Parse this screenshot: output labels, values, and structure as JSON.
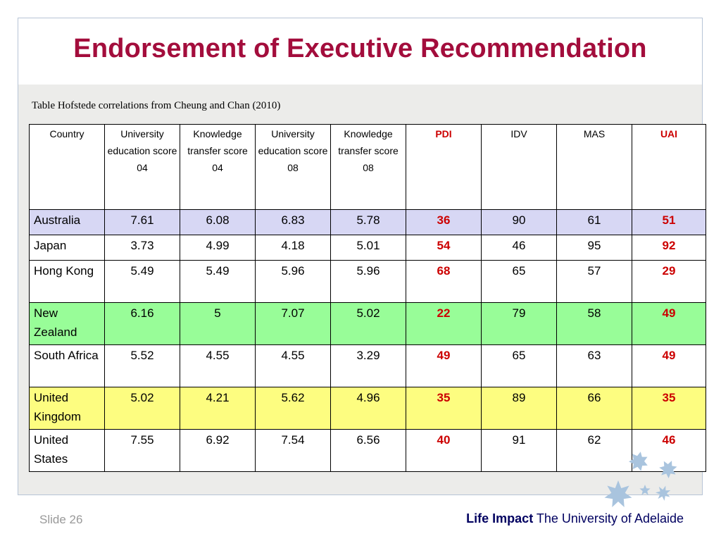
{
  "title": "Endorsement of Executive Recommendation",
  "caption": "Table Hofstede correlations from Cheung and Chan (2010)",
  "table": {
    "headers": [
      {
        "label": "Country",
        "highlight": false
      },
      {
        "label": "University education score 04",
        "highlight": false
      },
      {
        "label": "Knowledge transfer score 04",
        "highlight": false
      },
      {
        "label": "University education score 08",
        "highlight": false
      },
      {
        "label": "Knowledge transfer score 08",
        "highlight": false
      },
      {
        "label": "PDI",
        "highlight": true
      },
      {
        "label": "IDV",
        "highlight": false
      },
      {
        "label": "MAS",
        "highlight": false
      },
      {
        "label": "UAI",
        "highlight": true
      }
    ],
    "rows": [
      {
        "country": "Australia",
        "values": [
          "7.61",
          "6.08",
          "6.83",
          "5.78",
          "36",
          "90",
          "61",
          "51"
        ],
        "row_color": "#d7d7f4"
      },
      {
        "country": "Japan",
        "values": [
          "3.73",
          "4.99",
          "4.18",
          "5.01",
          "54",
          "46",
          "95",
          "92"
        ],
        "row_color": "#ffffff"
      },
      {
        "country": "Hong Kong",
        "values": [
          "5.49",
          "5.49",
          "5.96",
          "5.96",
          "68",
          "65",
          "57",
          "29"
        ],
        "row_color": "#ffffff"
      },
      {
        "country": "New Zealand",
        "values": [
          "6.16",
          "5",
          "7.07",
          "5.02",
          "22",
          "79",
          "58",
          "49"
        ],
        "row_color": "#98fd98"
      },
      {
        "country": "South Africa",
        "values": [
          "5.52",
          "4.55",
          "4.55",
          "3.29",
          "49",
          "65",
          "63",
          "49"
        ],
        "row_color": "#ffffff"
      },
      {
        "country": "United Kingdom",
        "values": [
          "5.02",
          "4.21",
          "5.62",
          "4.96",
          "35",
          "89",
          "66",
          "35"
        ],
        "row_color": "#fdfd80"
      },
      {
        "country": "United States",
        "values": [
          "7.55",
          "6.92",
          "7.54",
          "6.56",
          "40",
          "91",
          "62",
          "46"
        ],
        "row_color": "#ffffff"
      }
    ]
  },
  "footer": {
    "slide_label": "Slide 26",
    "brand_bold": "Life Impact",
    "brand_rest": "The University of Adelaide"
  },
  "colors": {
    "title": "#a30d3c",
    "highlight_value": "#cc0000",
    "stars": "#a9c4de"
  },
  "icons": [
    "star-icon"
  ]
}
